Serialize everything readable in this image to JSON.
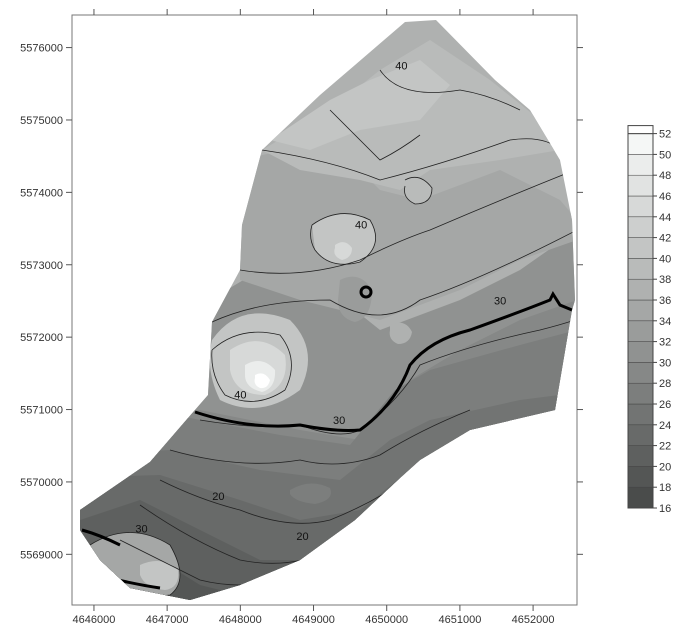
{
  "chart_data": {
    "type": "contour",
    "title": "",
    "xlabel": "",
    "ylabel": "",
    "xlim": [
      4645700,
      4652600
    ],
    "ylim": [
      5568300,
      5576450
    ],
    "x_ticks": [
      4646000,
      4647000,
      4648000,
      4649000,
      4650000,
      4651000,
      4652000
    ],
    "y_ticks": [
      5569000,
      5570000,
      5571000,
      5572000,
      5573000,
      5574000,
      5575000,
      5576000
    ],
    "x_tick_labels": [
      "4646000",
      "4647000",
      "4648000",
      "4649000",
      "4650000",
      "4651000",
      "4652000"
    ],
    "y_tick_labels": [
      "5569000",
      "5570000",
      "5571000",
      "5572000",
      "5573000",
      "5574000",
      "5575000",
      "5576000"
    ],
    "legend": {
      "position": "right",
      "levels": [
        16,
        18,
        20,
        22,
        24,
        26,
        28,
        30,
        32,
        34,
        36,
        38,
        40,
        42,
        44,
        46,
        48,
        50,
        52
      ],
      "labels": [
        "16",
        "18",
        "20",
        "22",
        "24",
        "26",
        "28",
        "30",
        "32",
        "34",
        "36",
        "38",
        "40",
        "42",
        "44",
        "46",
        "48",
        "50",
        "52"
      ]
    },
    "contour_labels": [
      {
        "text": "40",
        "x": 4650200,
        "y": 5575700
      },
      {
        "text": "40",
        "x": 4649650,
        "y": 5573500
      },
      {
        "text": "30",
        "x": 4651550,
        "y": 5572450
      },
      {
        "text": "40",
        "x": 4648000,
        "y": 5571150
      },
      {
        "text": "30",
        "x": 4649350,
        "y": 5570800
      },
      {
        "text": "20",
        "x": 4647700,
        "y": 5569750
      },
      {
        "text": "30",
        "x": 4646650,
        "y": 5569300
      },
      {
        "text": "20",
        "x": 4648850,
        "y": 5569200
      }
    ],
    "bold_level": 30,
    "grid": false
  }
}
